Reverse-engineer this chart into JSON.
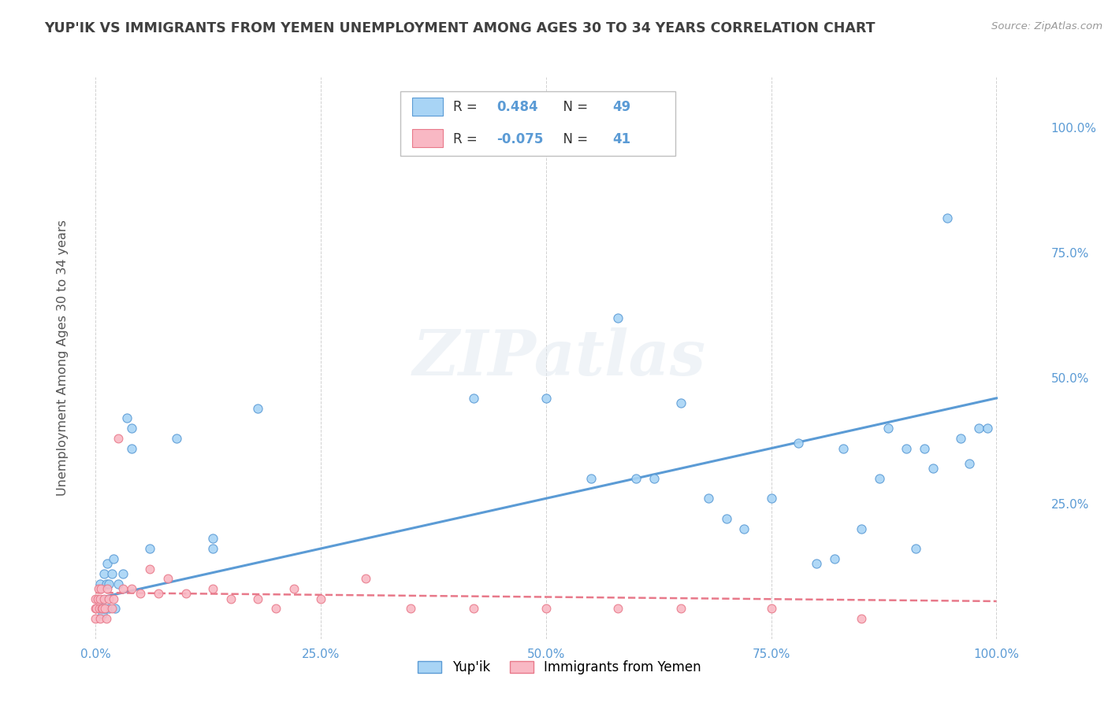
{
  "title": "YUP'IK VS IMMIGRANTS FROM YEMEN UNEMPLOYMENT AMONG AGES 30 TO 34 YEARS CORRELATION CHART",
  "source": "Source: ZipAtlas.com",
  "ylabel": "Unemployment Among Ages 30 to 34 years",
  "xlim": [
    -0.02,
    1.05
  ],
  "ylim": [
    -0.02,
    1.1
  ],
  "xticks": [
    0.0,
    0.25,
    0.5,
    0.75,
    1.0
  ],
  "xticklabels": [
    "0.0%",
    "25.0%",
    "50.0%",
    "75.0%",
    "100.0%"
  ],
  "yticks_left": [],
  "yticklabels_left": [],
  "yticks_right": [
    0.0,
    0.25,
    0.5,
    0.75,
    1.0
  ],
  "yticklabels_right": [
    "",
    "25.0%",
    "50.0%",
    "75.0%",
    "100.0%"
  ],
  "legend_r1": "0.484",
  "legend_n1": "49",
  "legend_r2": "-0.075",
  "legend_n2": "41",
  "legend_label1": "Yup'ik",
  "legend_label2": "Immigrants from Yemen",
  "color_blue": "#A8D4F5",
  "color_pink": "#F9B8C4",
  "color_blue_line": "#5B9BD5",
  "color_pink_line": "#E8798A",
  "watermark_text": "ZIPatlas",
  "blue_points_x": [
    0.005,
    0.007,
    0.008,
    0.009,
    0.01,
    0.012,
    0.013,
    0.015,
    0.015,
    0.018,
    0.02,
    0.022,
    0.025,
    0.03,
    0.035,
    0.04,
    0.04,
    0.06,
    0.09,
    0.13,
    0.13,
    0.18,
    0.42,
    0.5,
    0.55,
    0.58,
    0.6,
    0.62,
    0.65,
    0.68,
    0.7,
    0.72,
    0.75,
    0.78,
    0.8,
    0.82,
    0.83,
    0.85,
    0.87,
    0.88,
    0.9,
    0.91,
    0.92,
    0.93,
    0.945,
    0.96,
    0.97,
    0.98,
    0.99
  ],
  "blue_points_y": [
    0.09,
    0.04,
    0.03,
    0.11,
    0.04,
    0.09,
    0.13,
    0.04,
    0.09,
    0.11,
    0.14,
    0.04,
    0.09,
    0.11,
    0.42,
    0.36,
    0.4,
    0.16,
    0.38,
    0.16,
    0.18,
    0.44,
    0.46,
    0.46,
    0.3,
    0.62,
    0.3,
    0.3,
    0.45,
    0.26,
    0.22,
    0.2,
    0.26,
    0.37,
    0.13,
    0.14,
    0.36,
    0.2,
    0.3,
    0.4,
    0.36,
    0.16,
    0.36,
    0.32,
    0.82,
    0.38,
    0.33,
    0.4,
    0.4
  ],
  "pink_points_x": [
    0.0,
    0.0,
    0.0,
    0.001,
    0.002,
    0.003,
    0.004,
    0.005,
    0.005,
    0.006,
    0.007,
    0.008,
    0.009,
    0.01,
    0.012,
    0.013,
    0.015,
    0.018,
    0.02,
    0.025,
    0.03,
    0.04,
    0.05,
    0.06,
    0.07,
    0.08,
    0.1,
    0.13,
    0.15,
    0.18,
    0.2,
    0.22,
    0.25,
    0.3,
    0.35,
    0.42,
    0.5,
    0.58,
    0.65,
    0.75,
    0.85
  ],
  "pink_points_y": [
    0.02,
    0.04,
    0.06,
    0.04,
    0.06,
    0.08,
    0.04,
    0.02,
    0.06,
    0.08,
    0.04,
    0.04,
    0.06,
    0.04,
    0.02,
    0.08,
    0.06,
    0.04,
    0.06,
    0.38,
    0.08,
    0.08,
    0.07,
    0.12,
    0.07,
    0.1,
    0.07,
    0.08,
    0.06,
    0.06,
    0.04,
    0.08,
    0.06,
    0.1,
    0.04,
    0.04,
    0.04,
    0.04,
    0.04,
    0.04,
    0.02
  ],
  "blue_line_x0": 0.0,
  "blue_line_x1": 1.0,
  "blue_line_y0": 0.06,
  "blue_line_y1": 0.46,
  "pink_line_x0": 0.0,
  "pink_line_x1": 1.0,
  "pink_line_y0": 0.072,
  "pink_line_y1": 0.055,
  "background_color": "#FFFFFF",
  "grid_color": "#CCCCCC",
  "title_color": "#404040",
  "tick_color": "#5B9BD5"
}
